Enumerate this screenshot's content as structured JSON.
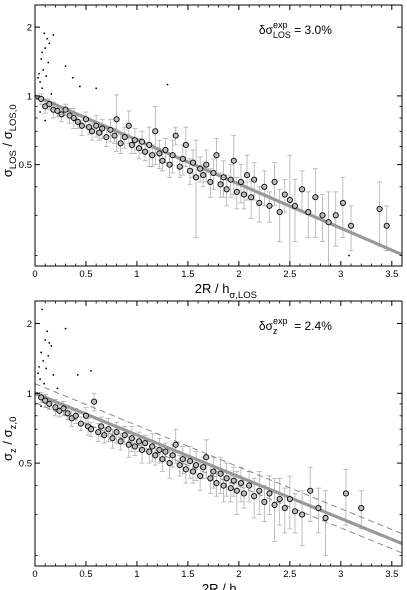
{
  "chart_data": [
    {
      "type": "scatter",
      "panel": "top",
      "xlabel_main": "2R / h",
      "xlabel_sub": "σ,LOS",
      "ylabel_num_main": "σ",
      "ylabel_num_sub": "LOS",
      "ylabel_sep": " / ",
      "ylabel_den_main": "σ",
      "ylabel_den_sub": "LOS,0",
      "annotation": {
        "prefix": "δσ",
        "sup": "exp",
        "sub": "LOS",
        "value": " = 3.0%"
      },
      "xlim": [
        0,
        3.6
      ],
      "ylim": [
        0.18,
        2.5
      ],
      "y_scale": "log",
      "x_ticks": [
        0,
        0.5,
        1,
        1.5,
        2,
        2.5,
        3,
        3.5
      ],
      "x_tick_labels": [
        "0",
        "0.5",
        "1",
        "1.5",
        "2",
        "2.5",
        "3",
        "3.5"
      ],
      "y_ticks": [
        0.5,
        1,
        2
      ],
      "y_tick_labels": [
        "0.5",
        "1",
        "2"
      ],
      "fit_line": {
        "x": [
          0,
          3.6
        ],
        "y": [
          1.0,
          0.202
        ],
        "color": "#999999"
      },
      "dashed_lines": [],
      "circles": [
        {
          "x": 0.06,
          "y": 0.97,
          "err": 0.05
        },
        {
          "x": 0.1,
          "y": 0.9,
          "err": 0.06
        },
        {
          "x": 0.14,
          "y": 0.92,
          "err": 0.05
        },
        {
          "x": 0.18,
          "y": 0.87,
          "err": 0.07
        },
        {
          "x": 0.22,
          "y": 0.86,
          "err": 0.05
        },
        {
          "x": 0.26,
          "y": 0.83,
          "err": 0.06
        },
        {
          "x": 0.3,
          "y": 0.87,
          "err": 0.05
        },
        {
          "x": 0.34,
          "y": 0.82,
          "err": 0.06
        },
        {
          "x": 0.38,
          "y": 0.8,
          "err": 0.08
        },
        {
          "x": 0.42,
          "y": 0.77,
          "err": 0.05
        },
        {
          "x": 0.46,
          "y": 0.74,
          "err": 0.07
        },
        {
          "x": 0.5,
          "y": 0.79,
          "err": 0.06
        },
        {
          "x": 0.53,
          "y": 0.73,
          "err": 0.05
        },
        {
          "x": 0.56,
          "y": 0.7,
          "err": 0.06
        },
        {
          "x": 0.6,
          "y": 0.74,
          "err": 0.08
        },
        {
          "x": 0.63,
          "y": 0.69,
          "err": 0.05
        },
        {
          "x": 0.66,
          "y": 0.72,
          "err": 0.07
        },
        {
          "x": 0.7,
          "y": 0.66,
          "err": 0.06
        },
        {
          "x": 0.74,
          "y": 0.71,
          "err": 0.08
        },
        {
          "x": 0.78,
          "y": 0.67,
          "err": 0.05
        },
        {
          "x": 0.8,
          "y": 0.79,
          "err": 0.22
        },
        {
          "x": 0.84,
          "y": 0.62,
          "err": 0.06
        },
        {
          "x": 0.88,
          "y": 0.66,
          "err": 0.07
        },
        {
          "x": 0.92,
          "y": 0.74,
          "err": 0.12
        },
        {
          "x": 0.95,
          "y": 0.61,
          "err": 0.05
        },
        {
          "x": 0.98,
          "y": 0.64,
          "err": 0.08
        },
        {
          "x": 1.02,
          "y": 0.59,
          "err": 0.06
        },
        {
          "x": 1.05,
          "y": 0.63,
          "err": 0.07
        },
        {
          "x": 1.08,
          "y": 0.57,
          "err": 0.05
        },
        {
          "x": 1.12,
          "y": 0.61,
          "err": 0.12
        },
        {
          "x": 1.15,
          "y": 0.55,
          "err": 0.06
        },
        {
          "x": 1.18,
          "y": 0.7,
          "err": 0.2
        },
        {
          "x": 1.22,
          "y": 0.56,
          "err": 0.08
        },
        {
          "x": 1.25,
          "y": 0.52,
          "err": 0.05
        },
        {
          "x": 1.28,
          "y": 0.58,
          "err": 0.07
        },
        {
          "x": 1.32,
          "y": 0.5,
          "err": 0.06
        },
        {
          "x": 1.35,
          "y": 0.55,
          "err": 0.09
        },
        {
          "x": 1.38,
          "y": 0.67,
          "err": 0.06
        },
        {
          "x": 1.42,
          "y": 0.49,
          "err": 0.05
        },
        {
          "x": 1.45,
          "y": 0.53,
          "err": 0.08
        },
        {
          "x": 1.48,
          "y": 0.61,
          "err": 0.12
        },
        {
          "x": 1.52,
          "y": 0.47,
          "err": 0.06
        },
        {
          "x": 1.55,
          "y": 0.51,
          "err": 0.07
        },
        {
          "x": 1.58,
          "y": 0.44,
          "err": 0.2
        },
        {
          "x": 1.62,
          "y": 0.48,
          "err": 0.06
        },
        {
          "x": 1.65,
          "y": 0.45,
          "err": 0.05
        },
        {
          "x": 1.68,
          "y": 0.5,
          "err": 0.08
        },
        {
          "x": 1.72,
          "y": 0.42,
          "err": 0.06
        },
        {
          "x": 1.75,
          "y": 0.46,
          "err": 0.07
        },
        {
          "x": 1.78,
          "y": 0.55,
          "err": 0.1
        },
        {
          "x": 1.82,
          "y": 0.41,
          "err": 0.05
        },
        {
          "x": 1.85,
          "y": 0.44,
          "err": 0.08
        },
        {
          "x": 1.88,
          "y": 0.39,
          "err": 0.06
        },
        {
          "x": 1.92,
          "y": 0.43,
          "err": 0.07
        },
        {
          "x": 1.95,
          "y": 0.52,
          "err": 0.15
        },
        {
          "x": 1.98,
          "y": 0.38,
          "err": 0.06
        },
        {
          "x": 2.02,
          "y": 0.42,
          "err": 0.08
        },
        {
          "x": 2.05,
          "y": 0.37,
          "err": 0.05
        },
        {
          "x": 2.08,
          "y": 0.45,
          "err": 0.1
        },
        {
          "x": 2.12,
          "y": 0.36,
          "err": 0.07
        },
        {
          "x": 2.15,
          "y": 0.43,
          "err": 0.08
        },
        {
          "x": 2.2,
          "y": 0.34,
          "err": 0.06
        },
        {
          "x": 2.25,
          "y": 0.4,
          "err": 0.07
        },
        {
          "x": 2.3,
          "y": 0.33,
          "err": 0.05
        },
        {
          "x": 2.35,
          "y": 0.42,
          "err": 0.09
        },
        {
          "x": 2.4,
          "y": 0.31,
          "err": 0.08
        },
        {
          "x": 2.45,
          "y": 0.37,
          "err": 0.06
        },
        {
          "x": 2.5,
          "y": 0.35,
          "err": 0.2
        },
        {
          "x": 2.55,
          "y": 0.33,
          "err": 0.1
        },
        {
          "x": 2.62,
          "y": 0.39,
          "err": 0.08
        },
        {
          "x": 2.68,
          "y": 0.31,
          "err": 0.07
        },
        {
          "x": 2.75,
          "y": 0.36,
          "err": 0.12
        },
        {
          "x": 2.82,
          "y": 0.3,
          "err": 0.07
        },
        {
          "x": 2.88,
          "y": 0.28,
          "err": 0.1
        },
        {
          "x": 2.95,
          "y": 0.3,
          "err": 0.08
        },
        {
          "x": 3.02,
          "y": 0.34,
          "err": 0.1
        },
        {
          "x": 3.1,
          "y": 0.27,
          "err": 0.06
        },
        {
          "x": 3.38,
          "y": 0.32,
          "err": 0.1
        },
        {
          "x": 3.45,
          "y": 0.27,
          "err": 0.06
        }
      ],
      "dots": [
        {
          "x": 0.04,
          "y": 1.25
        },
        {
          "x": 0.06,
          "y": 1.45
        },
        {
          "x": 0.08,
          "y": 1.3
        },
        {
          "x": 0.1,
          "y": 1.62
        },
        {
          "x": 0.09,
          "y": 1.88
        },
        {
          "x": 0.12,
          "y": 1.78
        },
        {
          "x": 0.14,
          "y": 1.7
        },
        {
          "x": 0.18,
          "y": 1.85
        },
        {
          "x": 0.05,
          "y": 1.15
        },
        {
          "x": 0.07,
          "y": 1.08
        },
        {
          "x": 0.03,
          "y": 1.2
        },
        {
          "x": 0.11,
          "y": 1.22
        },
        {
          "x": 0.13,
          "y": 1.4
        },
        {
          "x": 0.02,
          "y": 0.97
        },
        {
          "x": 0.07,
          "y": 1.55
        },
        {
          "x": 0.16,
          "y": 1.02
        },
        {
          "x": 0.05,
          "y": 0.85
        },
        {
          "x": 0.1,
          "y": 0.78
        },
        {
          "x": 0.3,
          "y": 1.35
        },
        {
          "x": 0.37,
          "y": 1.2
        },
        {
          "x": 0.44,
          "y": 1.1
        },
        {
          "x": 0.6,
          "y": 1.08
        },
        {
          "x": 1.3,
          "y": 1.12
        },
        {
          "x": 3.08,
          "y": 0.2
        }
      ]
    },
    {
      "type": "scatter",
      "panel": "bottom",
      "xlabel_main": "2R / h",
      "xlabel_sub": "σ,z",
      "ylabel_num_main": "σ",
      "ylabel_num_sub": "z",
      "ylabel_sep": " / ",
      "ylabel_den_main": "σ",
      "ylabel_den_sub": "z,0",
      "annotation": {
        "prefix": "δσ",
        "sup": "exp",
        "sub": "z",
        "value": " = 2.4%"
      },
      "xlim": [
        0,
        3.6
      ],
      "ylim": [
        0.18,
        2.5
      ],
      "y_scale": "log",
      "x_ticks": [
        0,
        0.5,
        1,
        1.5,
        2,
        2.5,
        3,
        3.5
      ],
      "x_tick_labels": [
        "0",
        "0.5",
        "1",
        "1.5",
        "2",
        "2.5",
        "3",
        "3.5"
      ],
      "y_ticks": [
        0.5,
        1,
        2
      ],
      "y_tick_labels": [
        "0.5",
        "1",
        "2"
      ],
      "fit_line": {
        "x": [
          0,
          3.6
        ],
        "y": [
          1.0,
          0.225
        ],
        "color": "#999999"
      },
      "dashed_lines": [
        {
          "x": [
            0,
            3.6
          ],
          "y": [
            1.1,
            0.248
          ]
        },
        {
          "x": [
            0,
            3.6
          ],
          "y": [
            0.91,
            0.205
          ]
        }
      ],
      "circles": [
        {
          "x": 0.06,
          "y": 0.96,
          "err": 0.05
        },
        {
          "x": 0.1,
          "y": 0.93,
          "err": 0.06
        },
        {
          "x": 0.14,
          "y": 0.9,
          "err": 0.05
        },
        {
          "x": 0.2,
          "y": 0.87,
          "err": 0.07
        },
        {
          "x": 0.24,
          "y": 0.84,
          "err": 0.05
        },
        {
          "x": 0.28,
          "y": 0.86,
          "err": 0.06
        },
        {
          "x": 0.32,
          "y": 0.82,
          "err": 0.05
        },
        {
          "x": 0.36,
          "y": 0.78,
          "err": 0.06
        },
        {
          "x": 0.4,
          "y": 0.8,
          "err": 0.06
        },
        {
          "x": 0.45,
          "y": 0.74,
          "err": 0.05
        },
        {
          "x": 0.5,
          "y": 0.8,
          "err": 0.07
        },
        {
          "x": 0.52,
          "y": 0.72,
          "err": 0.06
        },
        {
          "x": 0.55,
          "y": 0.7,
          "err": 0.05
        },
        {
          "x": 0.58,
          "y": 0.92,
          "err": 0.08
        },
        {
          "x": 0.62,
          "y": 0.68,
          "err": 0.06
        },
        {
          "x": 0.65,
          "y": 0.72,
          "err": 0.07
        },
        {
          "x": 0.68,
          "y": 0.66,
          "err": 0.05
        },
        {
          "x": 0.72,
          "y": 0.7,
          "err": 0.08
        },
        {
          "x": 0.76,
          "y": 0.64,
          "err": 0.06
        },
        {
          "x": 0.8,
          "y": 0.68,
          "err": 0.07
        },
        {
          "x": 0.84,
          "y": 0.62,
          "err": 0.05
        },
        {
          "x": 0.88,
          "y": 0.66,
          "err": 0.06
        },
        {
          "x": 0.92,
          "y": 0.6,
          "err": 0.07
        },
        {
          "x": 0.95,
          "y": 0.64,
          "err": 0.08
        },
        {
          "x": 0.98,
          "y": 0.59,
          "err": 0.05
        },
        {
          "x": 1.02,
          "y": 0.62,
          "err": 0.06
        },
        {
          "x": 1.05,
          "y": 0.57,
          "err": 0.07
        },
        {
          "x": 1.08,
          "y": 0.61,
          "err": 0.05
        },
        {
          "x": 1.12,
          "y": 0.56,
          "err": 0.06
        },
        {
          "x": 1.15,
          "y": 0.59,
          "err": 0.08
        },
        {
          "x": 1.18,
          "y": 0.54,
          "err": 0.05
        },
        {
          "x": 1.22,
          "y": 0.57,
          "err": 0.07
        },
        {
          "x": 1.25,
          "y": 0.52,
          "err": 0.06
        },
        {
          "x": 1.28,
          "y": 0.56,
          "err": 0.05
        },
        {
          "x": 1.32,
          "y": 0.5,
          "err": 0.07
        },
        {
          "x": 1.35,
          "y": 0.54,
          "err": 0.06
        },
        {
          "x": 1.38,
          "y": 0.6,
          "err": 0.1
        },
        {
          "x": 1.42,
          "y": 0.49,
          "err": 0.05
        },
        {
          "x": 1.45,
          "y": 0.52,
          "err": 0.07
        },
        {
          "x": 1.48,
          "y": 0.47,
          "err": 0.06
        },
        {
          "x": 1.52,
          "y": 0.51,
          "err": 0.08
        },
        {
          "x": 1.55,
          "y": 0.46,
          "err": 0.05
        },
        {
          "x": 1.58,
          "y": 0.49,
          "err": 0.07
        },
        {
          "x": 1.62,
          "y": 0.44,
          "err": 0.06
        },
        {
          "x": 1.65,
          "y": 0.48,
          "err": 0.05
        },
        {
          "x": 1.68,
          "y": 0.53,
          "err": 0.1
        },
        {
          "x": 1.72,
          "y": 0.43,
          "err": 0.06
        },
        {
          "x": 1.75,
          "y": 0.46,
          "err": 0.07
        },
        {
          "x": 1.78,
          "y": 0.41,
          "err": 0.05
        },
        {
          "x": 1.82,
          "y": 0.45,
          "err": 0.08
        },
        {
          "x": 1.85,
          "y": 0.4,
          "err": 0.06
        },
        {
          "x": 1.88,
          "y": 0.43,
          "err": 0.07
        },
        {
          "x": 1.92,
          "y": 0.39,
          "err": 0.05
        },
        {
          "x": 1.95,
          "y": 0.42,
          "err": 0.06
        },
        {
          "x": 1.98,
          "y": 0.38,
          "err": 0.08
        },
        {
          "x": 2.02,
          "y": 0.41,
          "err": 0.07
        },
        {
          "x": 2.05,
          "y": 0.37,
          "err": 0.05
        },
        {
          "x": 2.1,
          "y": 0.4,
          "err": 0.06
        },
        {
          "x": 2.15,
          "y": 0.36,
          "err": 0.07
        },
        {
          "x": 2.2,
          "y": 0.38,
          "err": 0.08
        },
        {
          "x": 2.25,
          "y": 0.34,
          "err": 0.06
        },
        {
          "x": 2.3,
          "y": 0.37,
          "err": 0.07
        },
        {
          "x": 2.35,
          "y": 0.33,
          "err": 0.1
        },
        {
          "x": 2.4,
          "y": 0.35,
          "err": 0.08
        },
        {
          "x": 2.45,
          "y": 0.32,
          "err": 0.07
        },
        {
          "x": 2.5,
          "y": 0.35,
          "err": 0.09
        },
        {
          "x": 2.55,
          "y": 0.31,
          "err": 0.06
        },
        {
          "x": 2.62,
          "y": 0.3,
          "err": 0.08
        },
        {
          "x": 2.7,
          "y": 0.38,
          "err": 0.1
        },
        {
          "x": 2.78,
          "y": 0.32,
          "err": 0.07
        },
        {
          "x": 2.85,
          "y": 0.29,
          "err": 0.09
        },
        {
          "x": 3.2,
          "y": 0.32,
          "err": 0.06
        },
        {
          "x": 3.05,
          "y": 0.37,
          "err": 0.1
        }
      ],
      "dots": [
        {
          "x": 0.04,
          "y": 1.3
        },
        {
          "x": 0.06,
          "y": 1.5
        },
        {
          "x": 0.08,
          "y": 1.38
        },
        {
          "x": 0.1,
          "y": 1.7
        },
        {
          "x": 0.07,
          "y": 2.3
        },
        {
          "x": 0.12,
          "y": 1.85
        },
        {
          "x": 0.14,
          "y": 1.65
        },
        {
          "x": 0.05,
          "y": 1.15
        },
        {
          "x": 0.09,
          "y": 1.1
        },
        {
          "x": 0.03,
          "y": 1.22
        },
        {
          "x": 0.11,
          "y": 1.28
        },
        {
          "x": 0.13,
          "y": 1.45
        },
        {
          "x": 0.16,
          "y": 1.6
        },
        {
          "x": 0.02,
          "y": 1.0
        },
        {
          "x": 0.18,
          "y": 1.2
        },
        {
          "x": 0.3,
          "y": 1.9
        },
        {
          "x": 0.42,
          "y": 1.2
        },
        {
          "x": 0.55,
          "y": 1.25
        },
        {
          "x": 0.22,
          "y": 1.05
        },
        {
          "x": 0.06,
          "y": 0.88
        }
      ]
    }
  ]
}
